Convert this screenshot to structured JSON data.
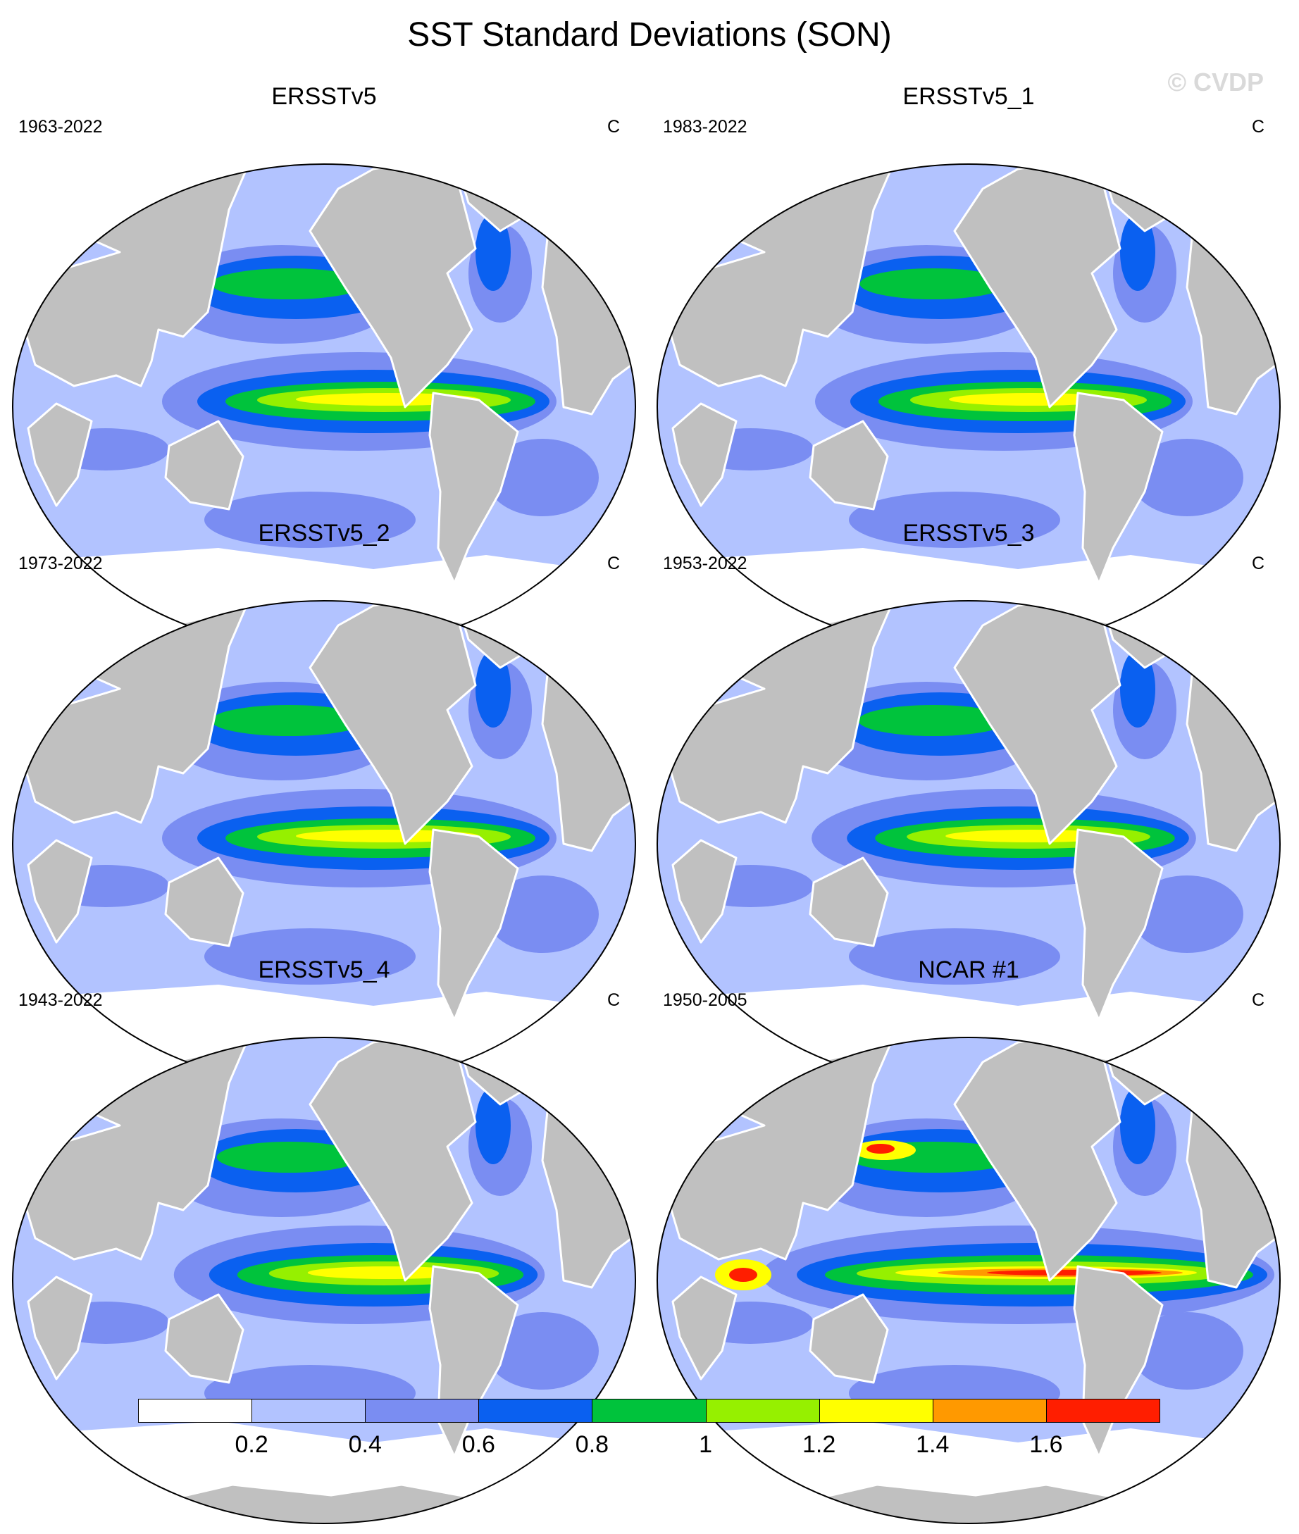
{
  "title": "SST Standard Deviations (SON)",
  "watermark": "© CVDP",
  "panels": [
    {
      "title": "ERSSTv5",
      "years": "1963-2022",
      "unit": "C",
      "strength": 1.0,
      "model": false
    },
    {
      "title": "ERSSTv5_1",
      "years": "1983-2022",
      "unit": "C",
      "strength": 0.95,
      "model": false
    },
    {
      "title": "ERSSTv5_2",
      "years": "1973-2022",
      "unit": "C",
      "strength": 1.0,
      "model": false
    },
    {
      "title": "ERSSTv5_3",
      "years": "1953-2022",
      "unit": "C",
      "strength": 0.97,
      "model": false
    },
    {
      "title": "ERSSTv5_4",
      "years": "1943-2022",
      "unit": "C",
      "strength": 0.93,
      "model": false
    },
    {
      "title": "NCAR #1",
      "years": "1950-2005",
      "unit": "C",
      "strength": 1.35,
      "model": true
    }
  ],
  "colorbar": {
    "levels": [
      "0.2",
      "0.4",
      "0.6",
      "0.8",
      "1",
      "1.2",
      "1.4",
      "1.6"
    ],
    "colors": [
      "#ffffff",
      "#b2c3ff",
      "#7a8df2",
      "#0a60f0",
      "#00c33c",
      "#96f000",
      "#ffff00",
      "#ff9900",
      "#ff1e00"
    ]
  },
  "map_colors": {
    "land": "#c0c0c0",
    "ocean_base": "#b2c3ff",
    "coast": "#ffffff"
  }
}
